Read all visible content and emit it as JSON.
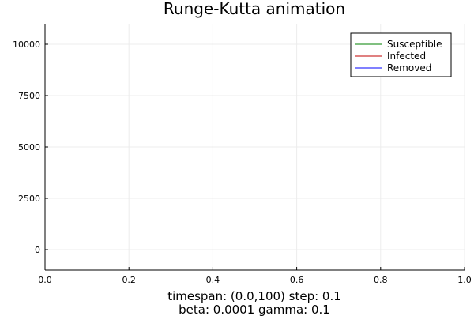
{
  "chart_data": {
    "type": "line",
    "title": "Runge-Kutta animation",
    "xlabel_lines": [
      "timespan: (0.0,100)    step: 0.1",
      "beta: 0.0001   gamma: 0.1"
    ],
    "ylabel": "",
    "xlim": [
      0,
      1
    ],
    "ylim": [
      -1000,
      11000
    ],
    "xticks": [
      0.0,
      0.2,
      0.4,
      0.6,
      0.8,
      1.0
    ],
    "xtick_labels": [
      "0.0",
      "0.2",
      "0.4",
      "0.6",
      "0.8",
      "1.0"
    ],
    "yticks": [
      0,
      2500,
      5000,
      7500,
      10000
    ],
    "ytick_labels": [
      "0",
      "2500",
      "5000",
      "7500",
      "10000"
    ],
    "grid": true,
    "legend_position": "top-right",
    "series": [
      {
        "name": "Susceptible",
        "color": "#008000",
        "x": [],
        "y": []
      },
      {
        "name": "Infected",
        "color": "#c00000",
        "x": [],
        "y": []
      },
      {
        "name": "Removed",
        "color": "#0000ff",
        "x": [],
        "y": []
      }
    ]
  }
}
